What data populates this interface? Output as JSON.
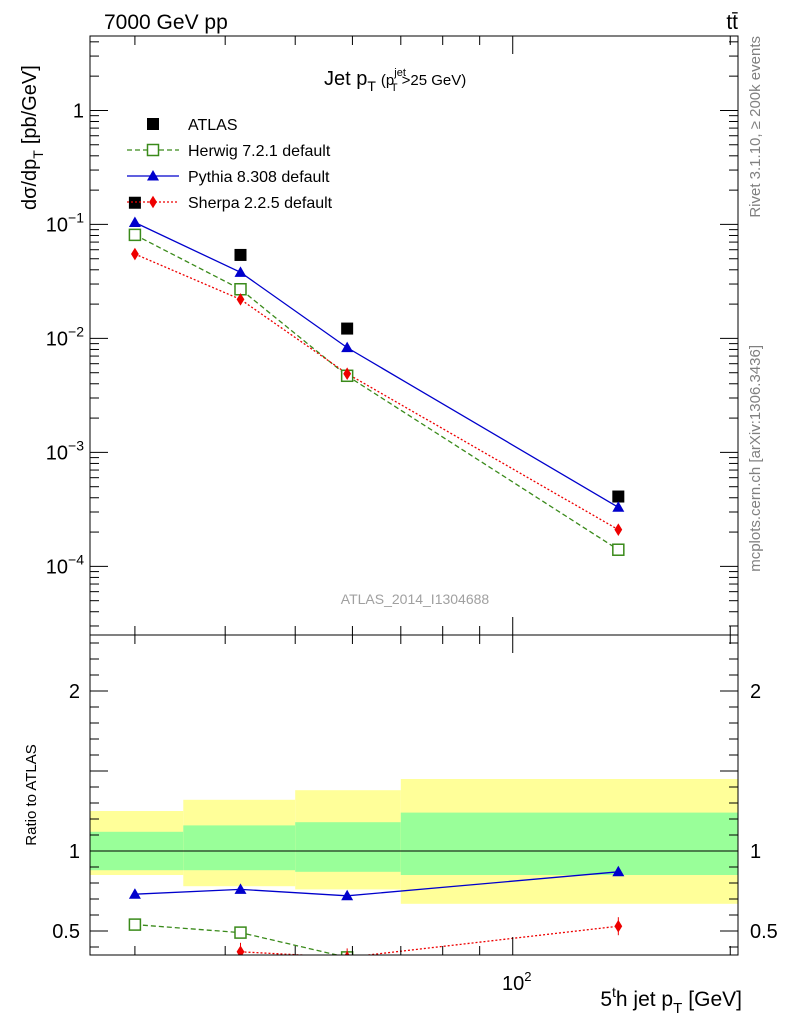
{
  "header": {
    "left": "7000 GeV pp",
    "right": "tt̄"
  },
  "side_labels": {
    "rivet": "Rivet 3.1.10, ≥ 200k events",
    "mcplots": "mcplots.cern.ch [arXiv:1306.3436]"
  },
  "watermark": "ATLAS_2014_I1304688",
  "chart_data": [
    {
      "type": "scatter",
      "title": "Jet p_T (p_T^jet > 25 GeV)",
      "title_main": "Jet p",
      "title_sub": "T",
      "title_paren_open": "(p",
      "title_paren_sup": "jet",
      "title_paren_sub": "T",
      "title_paren_rest": ">25 GeV)",
      "ylabel": "dσ/dp_T [pb/GeV]",
      "ylabel_main": "dσ/dp",
      "ylabel_sub": "T",
      "ylabel_unit": "[pb/GeV]",
      "xscale": "log",
      "yscale": "log",
      "xlim": [
        26,
        205
      ],
      "ylim": [
        2.5e-05,
        4.5
      ],
      "y_ticks": [
        {
          "value": 1,
          "label": "1"
        },
        {
          "value": 0.1,
          "base": "10",
          "exp": "−1"
        },
        {
          "value": 0.01,
          "base": "10",
          "exp": "−2"
        },
        {
          "value": 0.001,
          "base": "10",
          "exp": "−3"
        },
        {
          "value": 0.0001,
          "base": "10",
          "exp": "−4"
        }
      ],
      "legend_position": "top-left",
      "series": [
        {
          "name": "ATLAS",
          "marker": "square-filled",
          "color": "#000000",
          "line": "none",
          "x": [
            30,
            42,
            59,
            140
          ],
          "y": [
            0.155,
            0.054,
            0.0122,
            0.00041
          ]
        },
        {
          "name": "Herwig 7.2.1 default",
          "marker": "square-open",
          "color": "#3a8a1a",
          "line": "dashed",
          "x": [
            30,
            42,
            59,
            140
          ],
          "y": [
            0.081,
            0.027,
            0.0047,
            0.00014
          ]
        },
        {
          "name": "Pythia 8.308 default",
          "marker": "triangle-filled",
          "color": "#0000cc",
          "line": "solid",
          "x": [
            30,
            42,
            59,
            140
          ],
          "y": [
            0.104,
            0.038,
            0.0083,
            0.00033
          ]
        },
        {
          "name": "Sherpa 2.2.5 default",
          "marker": "diamond-filled",
          "color": "#ee0000",
          "line": "dotted",
          "x": [
            30,
            42,
            59,
            140
          ],
          "y": [
            0.055,
            0.022,
            0.0049,
            0.00021
          ]
        }
      ]
    },
    {
      "type": "scatter",
      "ylabel": "Ratio to ATLAS",
      "xlabel": "5^th jet p_T [GeV]",
      "xlabel_a": "5",
      "xlabel_sup": "t",
      "xlabel_b": "h jet p",
      "xlabel_sub": "T",
      "xlabel_unit": "[GeV]",
      "xscale": "log",
      "xlim": [
        26,
        205
      ],
      "ylim": [
        0.35,
        2.35
      ],
      "x_tick_label": {
        "value": 100,
        "base": "10",
        "exp": "2"
      },
      "y_ticks": [
        {
          "value": 2,
          "label": "2"
        },
        {
          "value": 1,
          "label": "1"
        },
        {
          "value": 0.5,
          "label": "0.5"
        }
      ],
      "bands": [
        {
          "x_low": 26,
          "x_high": 35,
          "green": [
            0.88,
            1.12
          ],
          "yellow": [
            0.85,
            1.25
          ]
        },
        {
          "x_low": 35,
          "x_high": 50,
          "green": [
            0.88,
            1.16
          ],
          "yellow": [
            0.78,
            1.32
          ]
        },
        {
          "x_low": 50,
          "x_high": 70,
          "green": [
            0.87,
            1.18
          ],
          "yellow": [
            0.76,
            1.38
          ]
        },
        {
          "x_low": 70,
          "x_high": 205,
          "green": [
            0.85,
            1.24
          ],
          "yellow": [
            0.67,
            1.45
          ]
        }
      ],
      "reference": 1,
      "series": [
        {
          "name": "Herwig 7.2.1 default",
          "marker": "square-open",
          "color": "#3a8a1a",
          "line": "dashed",
          "x": [
            30,
            42,
            59
          ],
          "y": [
            0.54,
            0.49,
            0.335
          ]
        },
        {
          "name": "Pythia 8.308 default",
          "marker": "triangle-filled",
          "color": "#0000cc",
          "line": "solid",
          "x": [
            30,
            42,
            59,
            140
          ],
          "y": [
            0.73,
            0.76,
            0.72,
            0.87
          ]
        },
        {
          "name": "Sherpa 2.2.5 default",
          "marker": "diamond-filled",
          "color": "#ee0000",
          "line": "dotted",
          "x": [
            42,
            59,
            140
          ],
          "y": [
            0.37,
            0.335,
            0.53
          ]
        }
      ]
    }
  ]
}
